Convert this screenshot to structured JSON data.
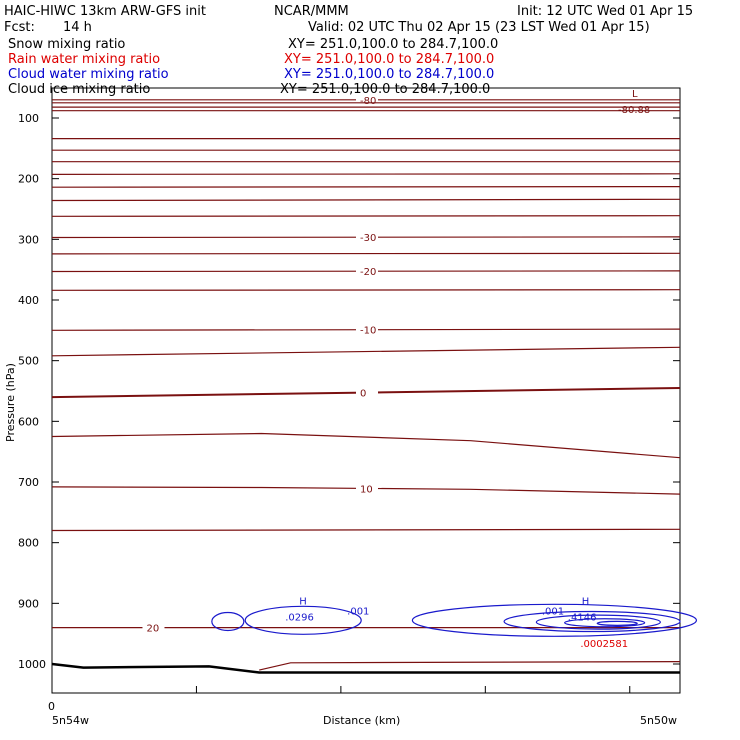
{
  "header": {
    "title_left": "HAIC-HIWC 13km ARW-GFS init",
    "org": "NCAR/MMM",
    "init": "Init: 12 UTC Wed 01 Apr 15",
    "fcst_label": "Fcst:",
    "fcst_value": "14 h",
    "valid": "Valid: 02 UTC Thu 02 Apr 15 (23 LST Wed 01 Apr 15)"
  },
  "fields": [
    {
      "name": "Snow mixing ratio",
      "xy": "XY= 251.0,100.0 to 284.7,100.0",
      "color": "#000000"
    },
    {
      "name": "Rain water mixing ratio",
      "xy": "XY= 251.0,100.0 to 284.7,100.0",
      "color": "#dd0000"
    },
    {
      "name": "Cloud water mixing ratio",
      "xy": "XY= 251.0,100.0 to 284.7,100.0",
      "color": "#0000cc"
    },
    {
      "name": "Cloud ice mixing ratio",
      "xy": "XY= 251.0,100.0 to 284.7,100.0",
      "color": "#000000"
    }
  ],
  "colors": {
    "temperature": "#7a1010",
    "cloud_water": "#1a1acc",
    "rain_label": "#dd0000",
    "terrain": "#000000"
  },
  "chart_data": {
    "type": "line",
    "ylabel": "Pressure (hPa)",
    "xlabel": "Distance (km)",
    "x_start_label": "5n54w",
    "x_end_label": "5n50w",
    "x_zero_label": "0",
    "y_axis": "pressure, decreasing upward",
    "ylim": [
      1050,
      70
    ],
    "y_ticks": [
      100,
      200,
      300,
      400,
      500,
      600,
      700,
      800,
      900,
      1000
    ],
    "x_tick_fractions": [
      0,
      0.23,
      0.46,
      0.69,
      0.92
    ],
    "series": [
      {
        "type": "isotherm",
        "label": "-80",
        "values": [
          70,
          70
        ]
      },
      {
        "type": "isotherm",
        "label": "",
        "values": [
          75,
          75
        ]
      },
      {
        "type": "isotherm",
        "label": "",
        "values": [
          82,
          82
        ]
      },
      {
        "type": "isotherm",
        "label": "",
        "values": [
          88,
          88
        ]
      },
      {
        "type": "isotherm",
        "label": "",
        "values": [
          134,
          134
        ]
      },
      {
        "type": "isotherm",
        "label": "",
        "values": [
          153,
          153
        ]
      },
      {
        "type": "isotherm",
        "label": "",
        "values": [
          172,
          172
        ]
      },
      {
        "type": "isotherm",
        "label": "",
        "values": [
          193,
          192
        ]
      },
      {
        "type": "isotherm",
        "label": "",
        "values": [
          214,
          213
        ]
      },
      {
        "type": "isotherm",
        "label": "",
        "values": [
          236,
          234
        ]
      },
      {
        "type": "isotherm",
        "label": "",
        "values": [
          262,
          261
        ]
      },
      {
        "type": "isotherm",
        "label": "-30",
        "values": [
          297,
          296
        ]
      },
      {
        "type": "isotherm",
        "label": "",
        "values": [
          324,
          323
        ]
      },
      {
        "type": "isotherm",
        "label": "-20",
        "values": [
          353,
          352
        ]
      },
      {
        "type": "isotherm",
        "label": "",
        "values": [
          384,
          383
        ]
      },
      {
        "type": "isotherm",
        "label": "-10",
        "values": [
          450,
          448
        ]
      },
      {
        "type": "isotherm",
        "label": "",
        "values": [
          492,
          478
        ]
      },
      {
        "type": "isotherm",
        "label": "0",
        "values": [
          560,
          545
        ],
        "bold": true
      },
      {
        "type": "isotherm",
        "label": "",
        "values": [
          625,
          620,
          632,
          660
        ]
      },
      {
        "type": "isotherm",
        "label": "10",
        "values": [
          708,
          709,
          712,
          720
        ]
      },
      {
        "type": "isotherm",
        "label": "",
        "values": [
          780,
          778
        ]
      },
      {
        "type": "isotherm",
        "label": "20",
        "values": [
          940,
          940
        ]
      }
    ],
    "extremes": [
      {
        "kind": "L",
        "label": "-80.88",
        "field": "temperature",
        "x_frac": 0.93,
        "p": 85
      },
      {
        "kind": "H",
        "label": ".0296",
        "field": "cloud_water",
        "x_frac": 0.4,
        "p": 922
      },
      {
        "kind": "H",
        "label": ".4146",
        "field": "cloud_water",
        "x_frac": 0.85,
        "p": 922
      },
      {
        "kind": "",
        "label": ".0002581",
        "field": "rain_water",
        "x_frac": 0.87,
        "p": 965
      }
    ],
    "cloud_water_contour_labels": [
      ".001",
      ".001"
    ],
    "terrain_top": "approx 1000-1015 hPa"
  }
}
